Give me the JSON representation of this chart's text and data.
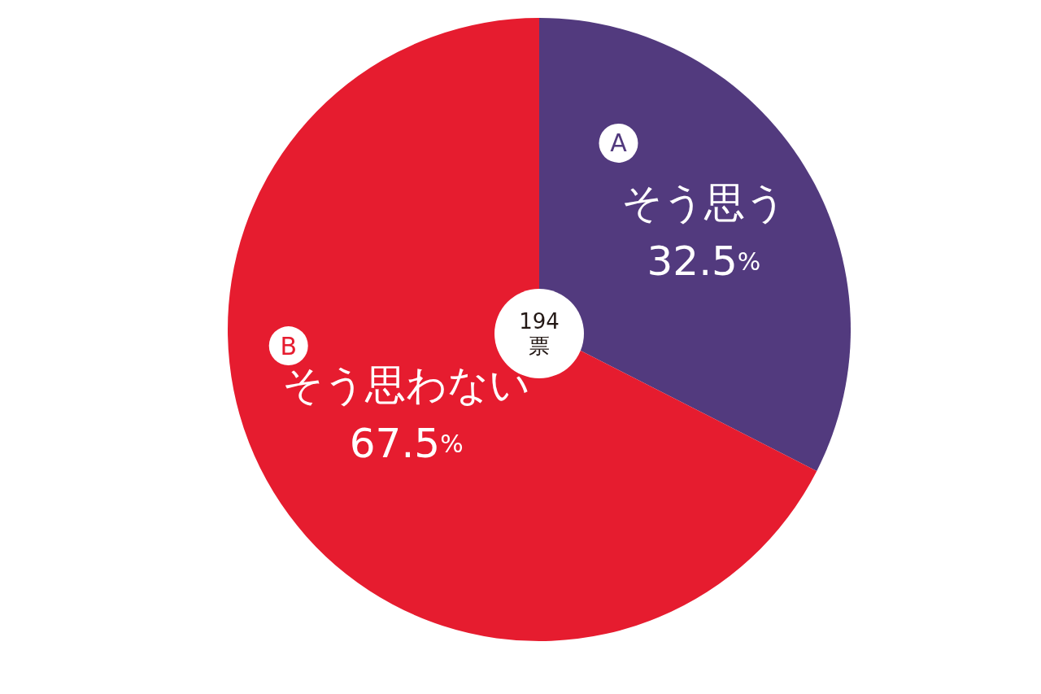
{
  "chart_data": {
    "type": "pie",
    "categories": [
      "そう思う",
      "そう思わない"
    ],
    "values": [
      32.5,
      67.5
    ],
    "colors": [
      "#523a7e",
      "#e61c2f"
    ],
    "value_labels": [
      "32.5%",
      "67.5%"
    ],
    "annotations": [
      "A",
      "B",
      "194",
      "票"
    ]
  }
}
